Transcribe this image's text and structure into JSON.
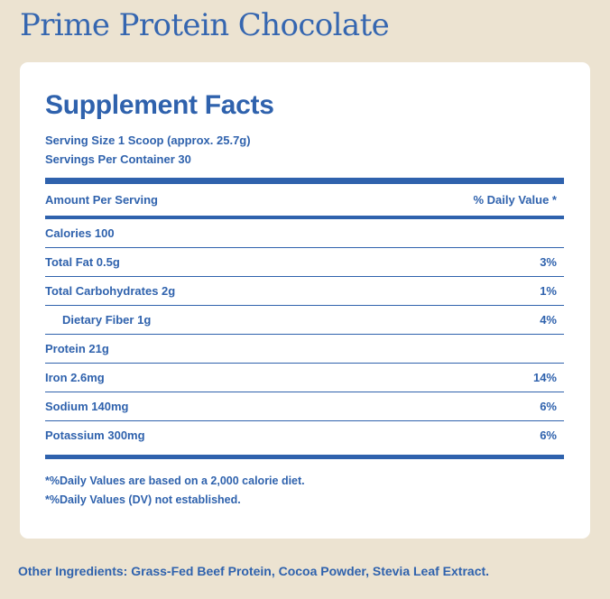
{
  "product": {
    "title": "Prime Protein Chocolate"
  },
  "facts": {
    "heading": "Supplement Facts",
    "serving_size": "Serving Size 1 Scoop (approx. 25.7g)",
    "servings_per_container": "Servings Per Container 30",
    "header": {
      "amount_label": "Amount Per Serving",
      "dv_label": "% Daily Value *"
    },
    "rows": [
      {
        "nutrient": "Calories 100",
        "dv": ""
      },
      {
        "nutrient": "Total Fat 0.5g",
        "dv": "3%"
      },
      {
        "nutrient": "Total Carbohydrates 2g",
        "dv": "1%"
      },
      {
        "nutrient": "Dietary Fiber 1g",
        "dv": "4%"
      },
      {
        "nutrient": "Protein 21g",
        "dv": ""
      },
      {
        "nutrient": "Iron 2.6mg",
        "dv": "14%"
      },
      {
        "nutrient": "Sodium 140mg",
        "dv": "6%"
      },
      {
        "nutrient": "Potassium 300mg",
        "dv": "6%"
      }
    ],
    "footnotes": [
      "*%Daily Values are based on a 2,000 calorie diet.",
      "*%Daily Values (DV) not established."
    ]
  },
  "ingredients": "Other Ingredients: Grass-Fed Beef Protein, Cocoa Powder, Stevia Leaf Extract.",
  "colors": {
    "background": "#ece3d1",
    "card": "#ffffff",
    "accent": "#2f62ad"
  }
}
